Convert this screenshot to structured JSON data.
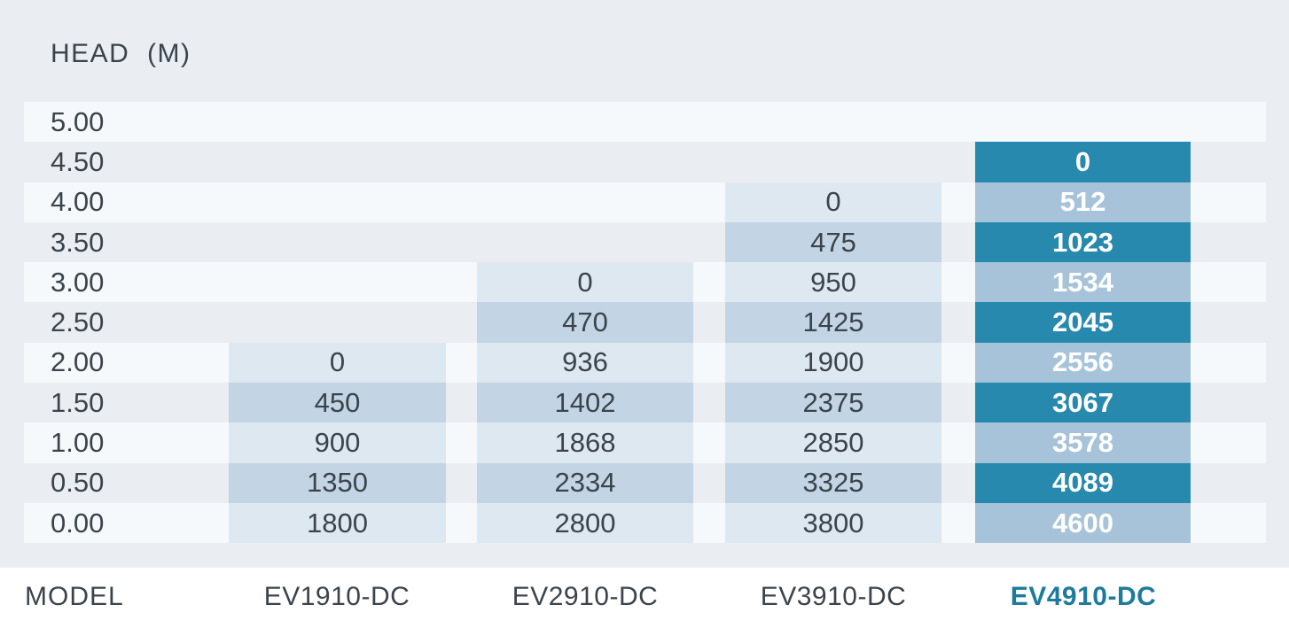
{
  "header": {
    "title": "HEAD  (M)"
  },
  "footer": {
    "label": "MODEL",
    "models": [
      "EV1910-DC",
      "EV2910-DC",
      "EV3910-DC",
      "EV4910-DC"
    ],
    "highlight_model": "EV4910-DC"
  },
  "colors": {
    "panel_bg": "#eaeef3",
    "row_stripe": "#f6f9fb",
    "cell_light": "#dee8f0",
    "cell_medium": "#c3d5e4",
    "cell_teal": "#2789ae",
    "cell_blue": "#a6c3d9",
    "text_dark": "#3b444c",
    "text_teal": "#1e7b9e",
    "cell_text_white": "#ffffff"
  },
  "chart_data": {
    "type": "table",
    "title": "HEAD (M)",
    "row_axis_label": "HEAD (M)",
    "column_axis_label": "MODEL",
    "heads_m": [
      "5.00",
      "4.50",
      "4.00",
      "3.50",
      "3.00",
      "2.50",
      "2.00",
      "1.50",
      "1.00",
      "0.50",
      "0.00"
    ],
    "models": [
      "EV1910-DC",
      "EV2910-DC",
      "EV3910-DC",
      "EV4910-DC"
    ],
    "flow_values": [
      [
        null,
        null,
        null,
        null
      ],
      [
        null,
        null,
        null,
        0
      ],
      [
        null,
        null,
        0,
        512
      ],
      [
        null,
        null,
        475,
        1023
      ],
      [
        null,
        0,
        950,
        1534
      ],
      [
        null,
        470,
        1425,
        2045
      ],
      [
        0,
        936,
        1900,
        2556
      ],
      [
        450,
        1402,
        2375,
        3067
      ],
      [
        900,
        1868,
        2850,
        3578
      ],
      [
        1350,
        2334,
        3325,
        4089
      ],
      [
        1800,
        2800,
        3800,
        4600
      ]
    ],
    "striped_row_indices": [
      0,
      2,
      4,
      6,
      8,
      10
    ],
    "highlight_column": "EV4910-DC",
    "legend_position": "none",
    "grid": false
  }
}
